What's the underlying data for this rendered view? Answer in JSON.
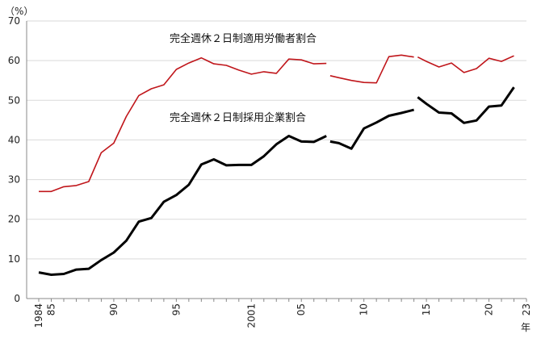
{
  "chart_data": {
    "type": "line",
    "y_unit_label": "（%）",
    "x_unit_label": "年",
    "ylim": [
      0,
      70
    ],
    "y_ticks": [
      0,
      10,
      20,
      30,
      40,
      50,
      60,
      70
    ],
    "xlim": [
      1984,
      2023
    ],
    "x_ticks": [
      {
        "year": 1984,
        "label": "1984",
        "rotated": true
      },
      {
        "year": 1985,
        "label": "85",
        "rotated": true
      },
      {
        "year": 1990,
        "label": "90",
        "rotated": true
      },
      {
        "year": 1995,
        "label": "95",
        "rotated": true
      },
      {
        "year": 2001,
        "label": "2001",
        "rotated": true
      },
      {
        "year": 2005,
        "label": "05",
        "rotated": true
      },
      {
        "year": 2010,
        "label": "10",
        "rotated": true
      },
      {
        "year": 2015,
        "label": "15",
        "rotated": true
      },
      {
        "year": 2020,
        "label": "20",
        "rotated": true
      },
      {
        "year": 2023,
        "label": "23",
        "rotated": true
      }
    ],
    "grid": "horizontal",
    "series": [
      {
        "name": "完全週休２日制適用労働者割合",
        "color": "#c0161b",
        "segments": [
          [
            [
              1984,
              27.0
            ],
            [
              1985,
              27.0
            ],
            [
              1986,
              28.2
            ],
            [
              1987,
              28.5
            ],
            [
              1988,
              29.5
            ],
            [
              1989,
              36.8
            ],
            [
              1990,
              39.2
            ],
            [
              1991,
              45.9
            ],
            [
              1992,
              51.2
            ],
            [
              1993,
              52.9
            ],
            [
              1994,
              53.9
            ],
            [
              1995,
              57.8
            ],
            [
              1996,
              59.4
            ],
            [
              1997,
              60.7
            ],
            [
              1998,
              59.2
            ],
            [
              1999,
              58.8
            ],
            [
              2000,
              57.6
            ],
            [
              2001,
              56.6
            ],
            [
              2002,
              57.2
            ],
            [
              2003,
              56.8
            ],
            [
              2004,
              60.4
            ],
            [
              2005,
              60.2
            ],
            [
              2006,
              59.2
            ],
            [
              2007,
              59.3
            ]
          ],
          [
            [
              2007.3,
              56.2
            ],
            [
              2008,
              55.7
            ],
            [
              2009,
              55.0
            ],
            [
              2010,
              54.5
            ],
            [
              2011,
              54.4
            ],
            [
              2012,
              61.0
            ],
            [
              2013,
              61.4
            ],
            [
              2014,
              60.9
            ]
          ],
          [
            [
              2014.3,
              60.9
            ],
            [
              2015,
              59.8
            ],
            [
              2016,
              58.4
            ],
            [
              2017,
              59.4
            ],
            [
              2018,
              57.0
            ],
            [
              2019,
              58.0
            ],
            [
              2020,
              60.6
            ],
            [
              2021,
              59.8
            ],
            [
              2022,
              61.2
            ]
          ]
        ]
      },
      {
        "name": "完全週休２日制採用企業割合",
        "color": "#000000",
        "segments": [
          [
            [
              1984,
              6.6
            ],
            [
              1985,
              6.0
            ],
            [
              1986,
              6.2
            ],
            [
              1987,
              7.3
            ],
            [
              1988,
              7.5
            ],
            [
              1989,
              9.7
            ],
            [
              1990,
              11.6
            ],
            [
              1991,
              14.6
            ],
            [
              1992,
              19.4
            ],
            [
              1993,
              20.3
            ],
            [
              1994,
              24.4
            ],
            [
              1995,
              26.1
            ],
            [
              1996,
              28.7
            ],
            [
              1997,
              33.8
            ],
            [
              1998,
              35.1
            ],
            [
              1999,
              33.6
            ],
            [
              2000,
              33.7
            ],
            [
              2001,
              33.7
            ],
            [
              2002,
              35.9
            ],
            [
              2003,
              38.9
            ],
            [
              2004,
              41.0
            ],
            [
              2005,
              39.6
            ],
            [
              2006,
              39.5
            ],
            [
              2007,
              41.0
            ]
          ],
          [
            [
              2007.3,
              39.6
            ],
            [
              2008,
              39.2
            ],
            [
              2009,
              37.8
            ],
            [
              2010,
              42.9
            ],
            [
              2011,
              44.4
            ],
            [
              2012,
              46.1
            ],
            [
              2013,
              46.8
            ],
            [
              2014,
              47.6
            ]
          ],
          [
            [
              2014.3,
              50.8
            ],
            [
              2015,
              49.1
            ],
            [
              2016,
              46.9
            ],
            [
              2017,
              46.7
            ],
            [
              2018,
              44.3
            ],
            [
              2019,
              44.9
            ],
            [
              2020,
              48.4
            ],
            [
              2021,
              48.7
            ],
            [
              2022,
              53.3
            ]
          ]
        ]
      }
    ],
    "annotations": [
      {
        "text": "完全週休２日制適用労働者割合",
        "series_index": 0
      },
      {
        "text": "完全週休２日制採用企業割合",
        "series_index": 1
      }
    ]
  }
}
